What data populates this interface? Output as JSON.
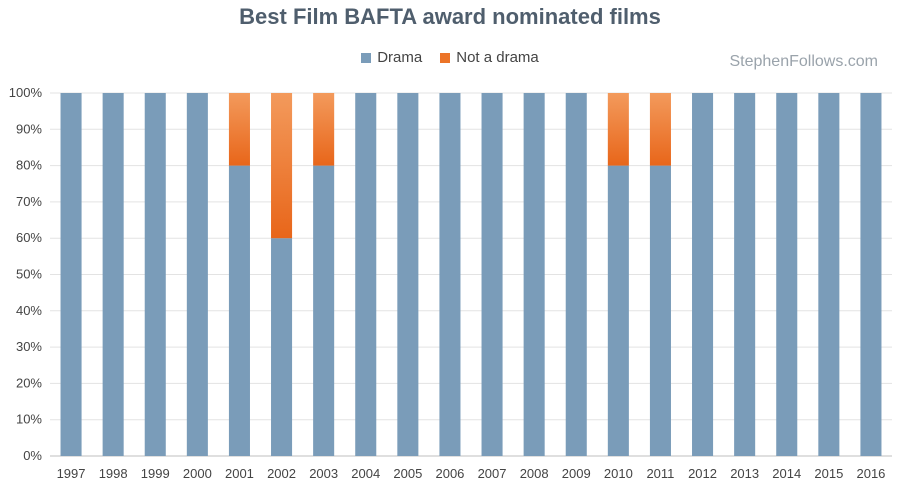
{
  "chart_data": {
    "type": "bar",
    "stacked": true,
    "title": "Best Film BAFTA award nominated films",
    "xlabel": "",
    "ylabel": "",
    "ylim": [
      0,
      100
    ],
    "y_ticks": [
      "0%",
      "10%",
      "20%",
      "30%",
      "40%",
      "50%",
      "60%",
      "70%",
      "80%",
      "90%",
      "100%"
    ],
    "categories": [
      "1997",
      "1998",
      "1999",
      "2000",
      "2001",
      "2002",
      "2003",
      "2004",
      "2005",
      "2006",
      "2007",
      "2008",
      "2009",
      "2010",
      "2011",
      "2012",
      "2013",
      "2014",
      "2015",
      "2016"
    ],
    "series": [
      {
        "name": "Drama",
        "color": "#7a9cb9",
        "values": [
          100,
          100,
          100,
          100,
          80,
          60,
          80,
          100,
          100,
          100,
          100,
          100,
          100,
          80,
          80,
          100,
          100,
          100,
          100,
          100
        ]
      },
      {
        "name": "Not a drama",
        "color": "#ec7428",
        "values": [
          0,
          0,
          0,
          0,
          20,
          40,
          20,
          0,
          0,
          0,
          0,
          0,
          0,
          20,
          20,
          0,
          0,
          0,
          0,
          0
        ]
      }
    ],
    "grid": true,
    "legend_position": "top"
  },
  "watermark": "StephenFollows.com"
}
